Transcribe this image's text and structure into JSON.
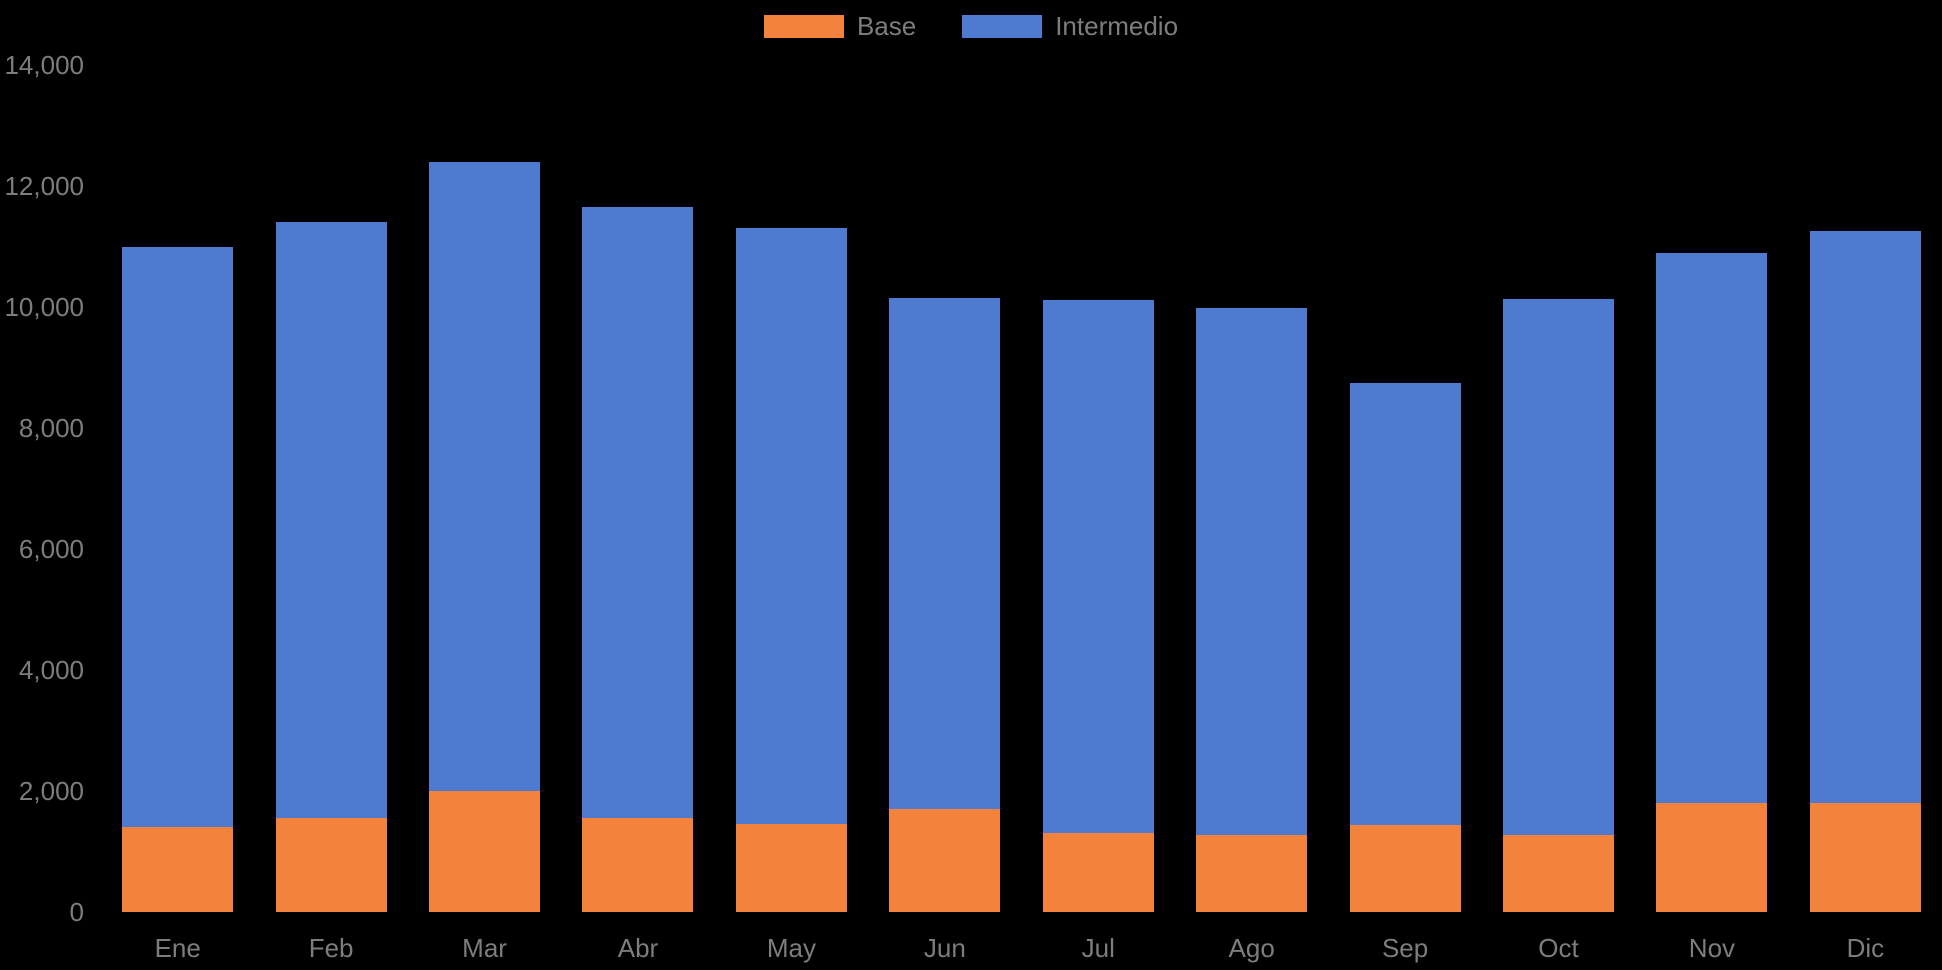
{
  "colors": {
    "background": "#000000",
    "axis_text": "#7d7d7d",
    "base_orange": "#F2823C",
    "intermedio_blue": "#4E7AD0"
  },
  "legend": {
    "items": [
      {
        "label": "Base",
        "color": "#F2823C"
      },
      {
        "label": "Intermedio",
        "color": "#4E7AD0"
      }
    ]
  },
  "chart_data": {
    "type": "bar",
    "stacked": true,
    "title": "",
    "xlabel": "",
    "ylabel": "",
    "categories": [
      "Ene",
      "Feb",
      "Mar",
      "Abr",
      "May",
      "Jun",
      "Jul",
      "Ago",
      "Sep",
      "Oct",
      "Nov",
      "Dic"
    ],
    "series": [
      {
        "name": "Base",
        "color": "#F2823C",
        "values": [
          1400,
          1550,
          2000,
          1550,
          1450,
          1700,
          1300,
          1270,
          1440,
          1280,
          1800,
          1800
        ]
      },
      {
        "name": "Intermedio",
        "color": "#4E7AD0",
        "values": [
          9600,
          9850,
          10400,
          10100,
          9850,
          8450,
          8820,
          8710,
          7310,
          8850,
          9090,
          9460
        ]
      }
    ],
    "stacked_totals": [
      11000,
      11400,
      12400,
      11650,
      11300,
      10150,
      10120,
      9980,
      8750,
      10130,
      10890,
      11260
    ],
    "ylim": [
      0,
      14000
    ],
    "y_tick_values": [
      0,
      2000,
      4000,
      6000,
      8000,
      10000,
      12000,
      14000
    ],
    "y_tick_labels": [
      "0",
      "2,000",
      "4,000",
      "6,000",
      "8,000",
      "10,000",
      "12,000",
      "14,000"
    ],
    "grid": false,
    "legend_position": "top-center"
  }
}
